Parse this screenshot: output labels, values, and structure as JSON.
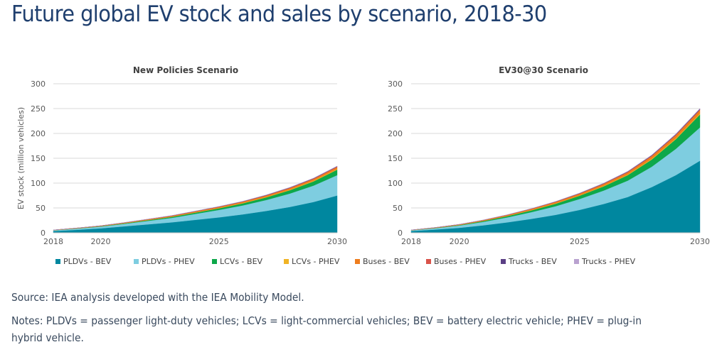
{
  "page": {
    "title": "Future global EV stock and sales by scenario, 2018-30",
    "source": "Source: IEA analysis developed with the IEA Mobility Model.",
    "notes_line1": "Notes: PLDVs = passenger light-duty vehicles; LCVs = light-commercial vehicles; BEV = battery electric vehicle; PHEV = plug-in",
    "notes_line2": "hybrid vehicle."
  },
  "chart_data": [
    {
      "type": "area",
      "stacked": true,
      "title": "New Policies Scenario",
      "xlabel": "",
      "ylabel": "EV stock (million vehicles)",
      "x": [
        2018,
        2019,
        2020,
        2021,
        2022,
        2023,
        2024,
        2025,
        2026,
        2027,
        2028,
        2029,
        2030
      ],
      "xticks": [
        "2018",
        "2020",
        "2025",
        "2030"
      ],
      "yticks": [
        "0",
        "50",
        "100",
        "150",
        "200",
        "250",
        "300"
      ],
      "ylim": [
        0,
        300
      ],
      "grid": true,
      "series": [
        {
          "name": "PLDVs - BEV",
          "color": "#00879f",
          "values": [
            3.5,
            6,
            9,
            13,
            17,
            21,
            26,
            31,
            37,
            44,
            52,
            62,
            75
          ]
        },
        {
          "name": "PLDVs - PHEV",
          "color": "#7ecde0",
          "values": [
            1.5,
            2.5,
            3.5,
            5,
            7,
            9,
            12,
            15,
            18,
            22,
            27,
            33,
            41
          ]
        },
        {
          "name": "LCVs - BEV",
          "color": "#0da84a",
          "values": [
            0.2,
            0.4,
            0.6,
            1,
            1.5,
            2,
            2.6,
            3.3,
            4.2,
            5.3,
            6.7,
            8.5,
            11
          ]
        },
        {
          "name": "LCVs - PHEV",
          "color": "#f0b324",
          "values": [
            0.05,
            0.1,
            0.2,
            0.3,
            0.4,
            0.5,
            0.6,
            0.7,
            0.8,
            0.9,
            1.1,
            1.3,
            1.5
          ]
        },
        {
          "name": "Buses - BEV",
          "color": "#ee7d1e",
          "values": [
            0.4,
            0.6,
            0.8,
            1,
            1.2,
            1.5,
            1.8,
            2.1,
            2.4,
            2.8,
            3.2,
            3.6,
            4
          ]
        },
        {
          "name": "Buses - PHEV",
          "color": "#d9534a",
          "values": [
            0.05,
            0.1,
            0.1,
            0.15,
            0.2,
            0.25,
            0.3,
            0.35,
            0.4,
            0.45,
            0.5,
            0.55,
            0.6
          ]
        },
        {
          "name": "Trucks - BEV",
          "color": "#5b3f85",
          "values": [
            0,
            0.05,
            0.1,
            0.15,
            0.2,
            0.25,
            0.3,
            0.35,
            0.4,
            0.5,
            0.6,
            0.7,
            0.8
          ]
        },
        {
          "name": "Trucks - PHEV",
          "color": "#b9a2cf",
          "values": [
            0,
            0.02,
            0.05,
            0.08,
            0.1,
            0.15,
            0.2,
            0.25,
            0.3,
            0.35,
            0.4,
            0.5,
            0.6
          ]
        }
      ]
    },
    {
      "type": "area",
      "stacked": true,
      "title": "EV30@30 Scenario",
      "xlabel": "",
      "ylabel": "",
      "x": [
        2018,
        2019,
        2020,
        2021,
        2022,
        2023,
        2024,
        2025,
        2026,
        2027,
        2028,
        2029,
        2030
      ],
      "xticks": [
        "2018",
        "2020",
        "2025",
        "2030"
      ],
      "yticks": [
        "0",
        "50",
        "100",
        "150",
        "200",
        "250",
        "300"
      ],
      "ylim": [
        0,
        300
      ],
      "grid": true,
      "series": [
        {
          "name": "PLDVs - BEV",
          "color": "#00879f",
          "values": [
            3.5,
            6.5,
            10,
            15,
            21,
            28,
            36,
            46,
            58,
            72,
            92,
            116,
            145
          ]
        },
        {
          "name": "PLDVs - PHEV",
          "color": "#7ecde0",
          "values": [
            1.5,
            2.7,
            4.5,
            7,
            10,
            13.5,
            17.5,
            22,
            27,
            33,
            41,
            53,
            67
          ]
        },
        {
          "name": "LCVs - BEV",
          "color": "#0da84a",
          "values": [
            0.2,
            0.5,
            1,
            1.7,
            2.6,
            3.7,
            5,
            6.6,
            8.5,
            11,
            14.5,
            19.5,
            26
          ]
        },
        {
          "name": "LCVs - PHEV",
          "color": "#f0b324",
          "values": [
            0.05,
            0.1,
            0.2,
            0.3,
            0.45,
            0.6,
            0.75,
            0.9,
            1.1,
            1.3,
            1.5,
            1.8,
            2.2
          ]
        },
        {
          "name": "Buses - BEV",
          "color": "#ee7d1e",
          "values": [
            0.4,
            0.7,
            1,
            1.4,
            1.8,
            2.3,
            2.8,
            3.3,
            3.9,
            4.6,
            5.4,
            6.2,
            7
          ]
        },
        {
          "name": "Buses - PHEV",
          "color": "#d9534a",
          "values": [
            0.05,
            0.1,
            0.15,
            0.2,
            0.25,
            0.3,
            0.35,
            0.4,
            0.5,
            0.6,
            0.7,
            0.8,
            0.9
          ]
        },
        {
          "name": "Trucks - BEV",
          "color": "#5b3f85",
          "values": [
            0,
            0.05,
            0.1,
            0.15,
            0.2,
            0.3,
            0.4,
            0.5,
            0.6,
            0.8,
            1,
            1.2,
            1.5
          ]
        },
        {
          "name": "Trucks - PHEV",
          "color": "#b9a2cf",
          "values": [
            0,
            0.02,
            0.05,
            0.08,
            0.12,
            0.18,
            0.25,
            0.3,
            0.4,
            0.5,
            0.6,
            0.75,
            0.9
          ]
        }
      ]
    }
  ],
  "legend": [
    {
      "label": "PLDVs - BEV",
      "color": "#00879f"
    },
    {
      "label": "PLDVs - PHEV",
      "color": "#7ecde0"
    },
    {
      "label": "LCVs - BEV",
      "color": "#0da84a"
    },
    {
      "label": "LCVs - PHEV",
      "color": "#f0b324"
    },
    {
      "label": "Buses - BEV",
      "color": "#ee7d1e"
    },
    {
      "label": "Buses - PHEV",
      "color": "#d9534a"
    },
    {
      "label": "Trucks - BEV",
      "color": "#5b3f85"
    },
    {
      "label": "Trucks - PHEV",
      "color": "#b9a2cf"
    }
  ]
}
